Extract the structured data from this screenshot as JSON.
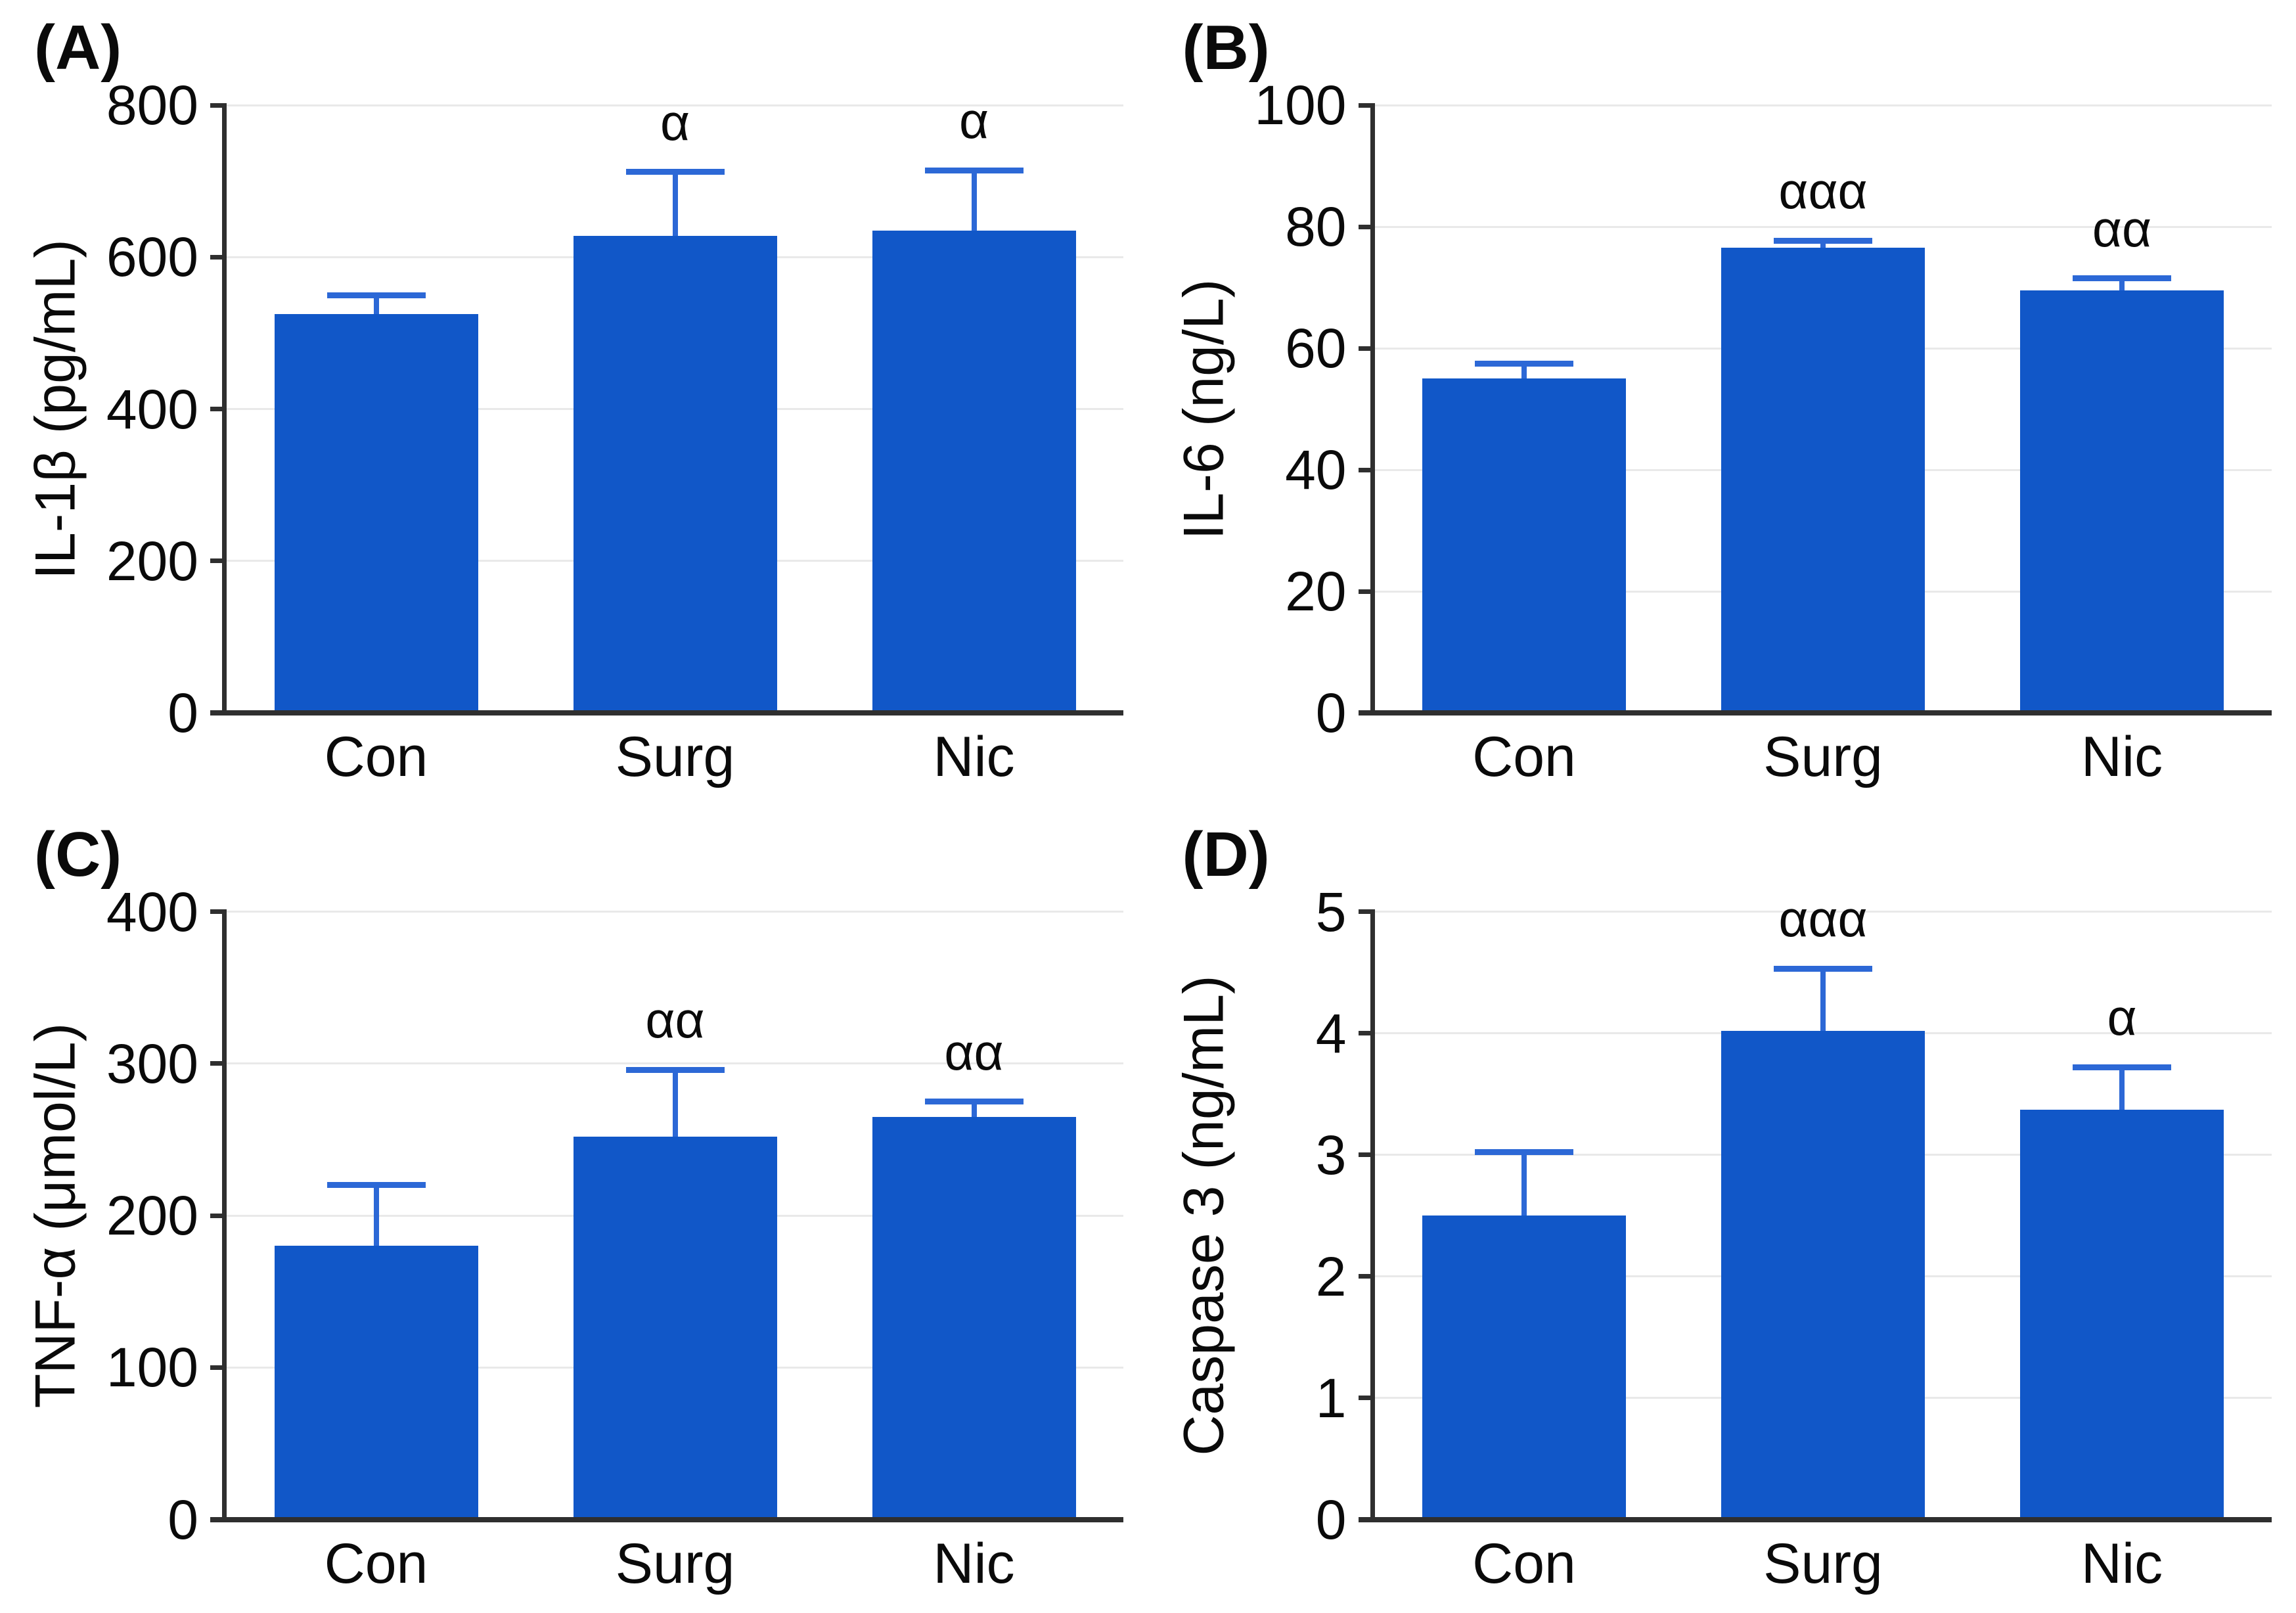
{
  "figure": {
    "background": "#ffffff",
    "groups": [
      "Con",
      "Surg",
      "Nic"
    ]
  },
  "colors": {
    "bar_fill": "#1157C8",
    "error_bar": "#2C68D6",
    "axis": "#2F2F2F",
    "gridline": "#E9E9E9",
    "text": "#0A0A0A"
  },
  "chart_data": [
    {
      "type": "bar",
      "panel_label": "(A)",
      "ylabel": "IL-1β (pg/mL)",
      "xlabel": "",
      "ylim": [
        0,
        800
      ],
      "yticks": [
        0,
        200,
        400,
        600,
        800
      ],
      "grid": "horizontal",
      "legend": "none",
      "categories": [
        "Con",
        "Surg",
        "Nic"
      ],
      "values": [
        525,
        628,
        635
      ],
      "error_plus": [
        25,
        84,
        79
      ],
      "annotations": [
        "",
        "α",
        "α"
      ]
    },
    {
      "type": "bar",
      "panel_label": "(B)",
      "ylabel": "IL-6 (ng/L)",
      "xlabel": "",
      "ylim": [
        0,
        100
      ],
      "yticks": [
        0,
        20,
        40,
        60,
        80,
        100
      ],
      "grid": "horizontal",
      "legend": "none",
      "categories": [
        "Con",
        "Surg",
        "Nic"
      ],
      "values": [
        55,
        76.5,
        69.5
      ],
      "error_plus": [
        2.5,
        1.2,
        2
      ],
      "annotations": [
        "",
        "ααα",
        "αα"
      ]
    },
    {
      "type": "bar",
      "panel_label": "(C)",
      "ylabel": "TNF-α (μmol/L)",
      "xlabel": "",
      "ylim": [
        0,
        400
      ],
      "yticks": [
        0,
        100,
        200,
        300,
        400
      ],
      "grid": "horizontal",
      "legend": "none",
      "categories": [
        "Con",
        "Surg",
        "Nic"
      ],
      "values": [
        180,
        252,
        265
      ],
      "error_plus": [
        40,
        44,
        10
      ],
      "annotations": [
        "",
        "αα",
        "αα"
      ]
    },
    {
      "type": "bar",
      "panel_label": "(D)",
      "ylabel": "Caspase 3 (ng/mL)",
      "xlabel": "",
      "ylim": [
        0,
        5
      ],
      "yticks": [
        0,
        1,
        2,
        3,
        4,
        5
      ],
      "grid": "horizontal",
      "legend": "none",
      "categories": [
        "Con",
        "Surg",
        "Nic"
      ],
      "values": [
        2.5,
        4.02,
        3.37
      ],
      "error_plus": [
        0.52,
        0.51,
        0.35
      ],
      "annotations": [
        "",
        "ααα",
        "α"
      ]
    }
  ]
}
